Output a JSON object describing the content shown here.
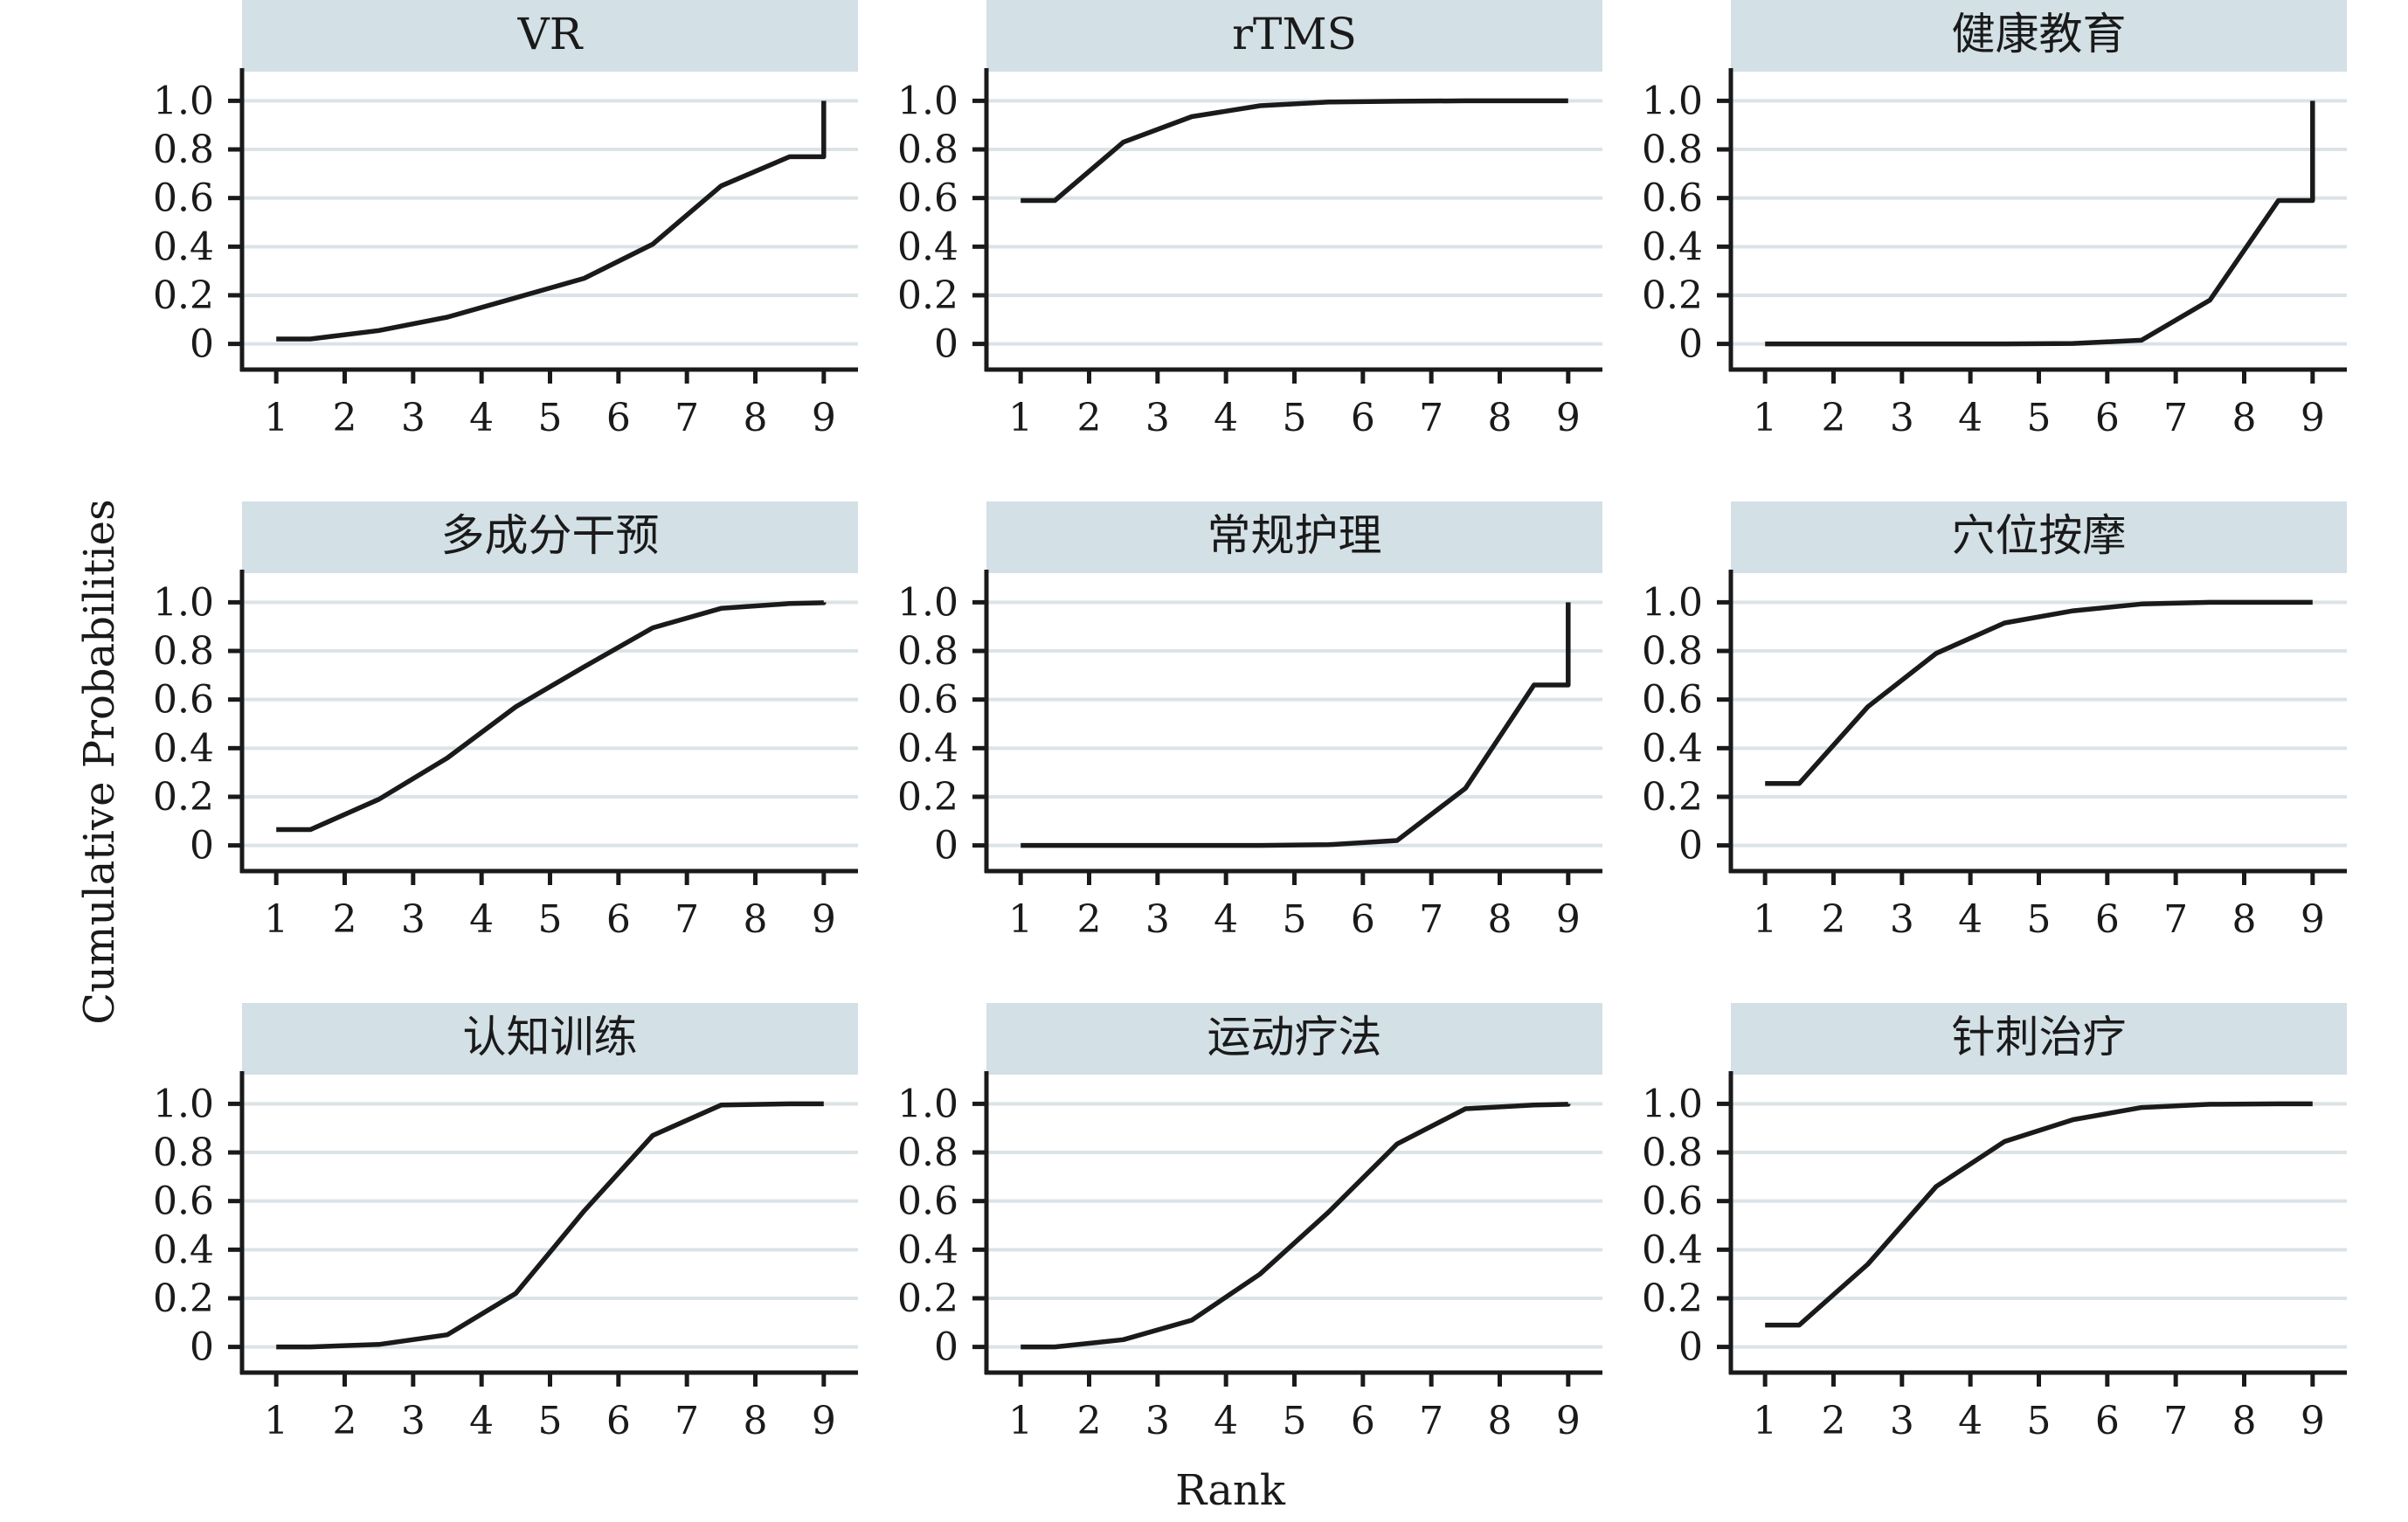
{
  "chart_data": {
    "type": "line",
    "xlabel": "Rank",
    "ylabel": "Cumulative Probabilities",
    "x_ticks": [
      1,
      2,
      3,
      4,
      5,
      6,
      7,
      8,
      9
    ],
    "y_ticks": [
      0,
      0.2,
      0.4,
      0.6,
      0.8,
      1.0
    ],
    "y_tick_labels": [
      "0",
      "0.2",
      "0.4",
      "0.6",
      "0.8",
      "1.0"
    ],
    "xlim": [
      0.5,
      9.5
    ],
    "ylim": [
      -0.12,
      1.12
    ],
    "grid": true,
    "panels": [
      {
        "title": "VR",
        "x": [
          1,
          1.5,
          2.5,
          3.5,
          4.5,
          5.5,
          6.5,
          7.5,
          8.5,
          9,
          9
        ],
        "y": [
          0.02,
          0.02,
          0.055,
          0.11,
          0.19,
          0.27,
          0.41,
          0.65,
          0.77,
          0.77,
          1.0
        ]
      },
      {
        "title": "rTMS",
        "x": [
          1,
          1.5,
          2.5,
          3.5,
          4.5,
          5.5,
          6.5,
          7.5,
          8.5,
          9,
          9
        ],
        "y": [
          0.59,
          0.59,
          0.83,
          0.935,
          0.98,
          0.995,
          0.998,
          1.0,
          1.0,
          1.0,
          1.0
        ]
      },
      {
        "title": "健康教育",
        "x": [
          1,
          1.5,
          2.5,
          3.5,
          4.5,
          5.5,
          6.5,
          7.5,
          8.5,
          9,
          9
        ],
        "y": [
          0.0,
          0.0,
          0.0,
          0.0,
          0.0,
          0.002,
          0.015,
          0.18,
          0.59,
          0.59,
          1.0
        ]
      },
      {
        "title": "多成分干预",
        "x": [
          1,
          1.5,
          2.5,
          3.5,
          4.5,
          5.5,
          6.5,
          7.5,
          8.5,
          9,
          9
        ],
        "y": [
          0.065,
          0.065,
          0.19,
          0.36,
          0.57,
          0.735,
          0.895,
          0.975,
          0.995,
          0.998,
          1.0
        ]
      },
      {
        "title": "常规护理",
        "x": [
          1,
          1.5,
          2.5,
          3.5,
          4.5,
          5.5,
          6.5,
          7.5,
          8.5,
          9,
          9
        ],
        "y": [
          0.0,
          0.0,
          0.0,
          0.0,
          0.0,
          0.003,
          0.02,
          0.235,
          0.66,
          0.66,
          1.0
        ]
      },
      {
        "title": "穴位按摩",
        "x": [
          1,
          1.5,
          2.5,
          3.5,
          4.5,
          5.5,
          6.5,
          7.5,
          8.5,
          9,
          9
        ],
        "y": [
          0.255,
          0.255,
          0.57,
          0.79,
          0.915,
          0.965,
          0.993,
          1.0,
          1.0,
          1.0,
          1.0
        ]
      },
      {
        "title": "认知训练",
        "x": [
          1,
          1.5,
          2.5,
          3.5,
          4.5,
          5.5,
          6.5,
          7.5,
          8.5,
          9,
          9
        ],
        "y": [
          0.0,
          0.0,
          0.01,
          0.05,
          0.22,
          0.56,
          0.87,
          0.995,
          1.0,
          1.0,
          1.0
        ]
      },
      {
        "title": "运动疗法",
        "x": [
          1,
          1.5,
          2.5,
          3.5,
          4.5,
          5.5,
          6.5,
          7.5,
          8.5,
          9,
          9
        ],
        "y": [
          0.0,
          0.0,
          0.03,
          0.11,
          0.3,
          0.555,
          0.835,
          0.98,
          0.995,
          0.998,
          1.0
        ]
      },
      {
        "title": "针刺治疗",
        "x": [
          1,
          1.5,
          2.5,
          3.5,
          4.5,
          5.5,
          6.5,
          7.5,
          8.5,
          9,
          9
        ],
        "y": [
          0.09,
          0.09,
          0.34,
          0.66,
          0.845,
          0.935,
          0.985,
          0.998,
          1.0,
          1.0,
          1.0
        ]
      }
    ]
  }
}
